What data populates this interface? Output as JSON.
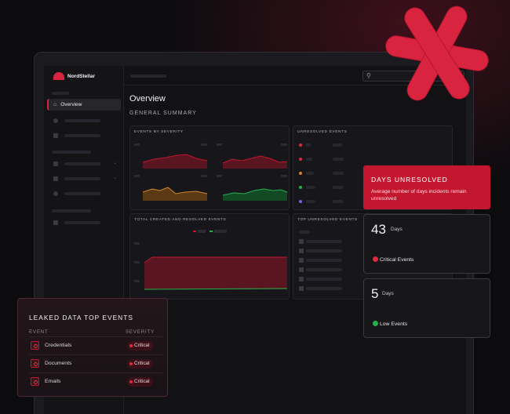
{
  "app": {
    "brand": "NordStellar"
  },
  "sidebar": {
    "active_item": "Overview"
  },
  "page": {
    "title": "Overview",
    "subtitle": "GENERAL SUMMARY"
  },
  "panels": {
    "severity": "EVENTS BY SEVERITY",
    "unresolved": "UNRESOLVED EVENTS",
    "created_resolved": "TOTAL CREATED AND RESOLVED EVENTS",
    "top_unresolved": "TOP UNRESOLVED EVENTS"
  },
  "days_unresolved": {
    "title": "DAYS UNRESOLVED",
    "description": "Average number of days incidents remain unresolved",
    "cards": [
      {
        "value": "43",
        "unit": "Days",
        "label": "Critical Events",
        "status": "critical"
      },
      {
        "value": "5",
        "unit": "Days",
        "label": "Low Events",
        "status": "low"
      }
    ]
  },
  "leaked": {
    "title": "LEAKED DATA TOP EVENTS",
    "col_event": "EVENT",
    "col_severity": "SEVERITY",
    "rows": [
      {
        "event": "Credentials",
        "severity": "Critical"
      },
      {
        "event": "Documents",
        "severity": "Critical"
      },
      {
        "event": "Emails",
        "severity": "Critical"
      }
    ]
  },
  "icons": [
    "home-icon",
    "search-icon",
    "asterisk-logo",
    "alert-icon",
    "check-icon",
    "event-icon"
  ],
  "colors": {
    "accent": "#c3172f",
    "critical": "#e0283f",
    "low": "#22b04b",
    "background": "#0c0c0e"
  }
}
